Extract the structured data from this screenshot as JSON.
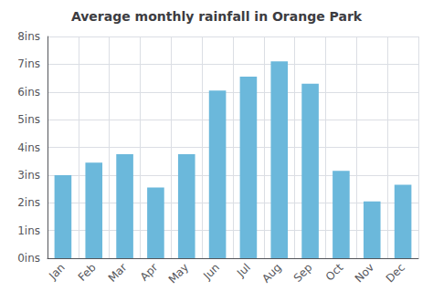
{
  "chart_data": {
    "type": "bar",
    "title": "Average monthly rainfall in Orange Park",
    "categories": [
      "Jan",
      "Feb",
      "Mar",
      "Apr",
      "May",
      "Jun",
      "Jul",
      "Aug",
      "Sep",
      "Oct",
      "Nov",
      "Dec"
    ],
    "values": [
      3.0,
      3.45,
      3.75,
      2.55,
      3.75,
      6.05,
      6.55,
      7.1,
      6.3,
      3.15,
      2.05,
      2.65
    ],
    "color": "#6bb8db",
    "ylim": [
      0,
      8
    ],
    "yticks": [
      {
        "value": 0,
        "label": "0ins"
      },
      {
        "value": 1,
        "label": "1ins"
      },
      {
        "value": 2,
        "label": "2ins"
      },
      {
        "value": 3,
        "label": "3ins"
      },
      {
        "value": 4,
        "label": "4ins"
      },
      {
        "value": 5,
        "label": "5ins"
      },
      {
        "value": 6,
        "label": "6ins"
      },
      {
        "value": 7,
        "label": "7ins"
      },
      {
        "value": 8,
        "label": "8ins"
      }
    ],
    "grid": true
  }
}
